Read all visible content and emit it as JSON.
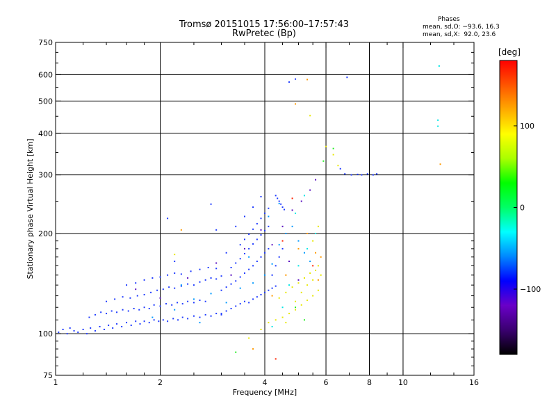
{
  "chart_data": {
    "type": "scatter",
    "title": "Tromsø 20151015 17:56:00–17:57:43",
    "subtitle": "RwPretec (Bp)",
    "xlabel": "Frequency [MHz]",
    "ylabel": "Stationary phase Virtual Height [km]",
    "x_scale": "log",
    "y_scale": "log",
    "xlim": [
      1,
      16
    ],
    "ylim": [
      75,
      750
    ],
    "x_ticks": [
      1,
      2,
      4,
      6,
      8,
      10,
      16
    ],
    "x_tick_labels": [
      "1",
      "2",
      "4",
      "6",
      "8",
      "10",
      "16"
    ],
    "y_ticks": [
      75,
      100,
      200,
      300,
      400,
      500,
      600,
      750
    ],
    "y_tick_labels": [
      "75",
      "100",
      "200",
      "300",
      "400",
      "500",
      "600",
      "750"
    ],
    "grid": true,
    "phase_stats": {
      "heading": "Phases",
      "o_mode": "mean, sd,O: −93.6, 16.3",
      "x_mode": "mean, sd,X:  92.0, 23.6"
    },
    "colorbar": {
      "label": "[deg]",
      "range": [
        -180,
        180
      ],
      "ticks": [
        100,
        0,
        -100
      ],
      "tick_labels": [
        "100",
        "0",
        "−100"
      ],
      "colors": [
        "#000000",
        "#3a0070",
        "#6a00c8",
        "#0000ff",
        "#0088ff",
        "#00ffff",
        "#00ff66",
        "#00ff00",
        "#aaff00",
        "#ffff00",
        "#ffaa00",
        "#ff5500",
        "#ff0000"
      ]
    },
    "series": [
      {
        "phase": -95,
        "color": "#1f3bff",
        "points": [
          [
            1.02,
            101
          ],
          [
            1.05,
            103
          ],
          [
            1.08,
            100
          ],
          [
            1.1,
            104
          ],
          [
            1.13,
            102
          ],
          [
            1.16,
            101
          ],
          [
            1.2,
            103
          ],
          [
            1.23,
            100
          ],
          [
            1.26,
            104
          ],
          [
            1.3,
            102
          ],
          [
            1.34,
            105
          ],
          [
            1.38,
            103
          ],
          [
            1.42,
            106
          ],
          [
            1.46,
            104
          ],
          [
            1.5,
            107
          ],
          [
            1.55,
            105
          ],
          [
            1.6,
            108
          ],
          [
            1.65,
            106
          ],
          [
            1.7,
            109
          ],
          [
            1.75,
            107
          ],
          [
            1.8,
            109
          ],
          [
            1.86,
            108
          ],
          [
            1.92,
            110
          ],
          [
            1.98,
            109
          ],
          [
            2.04,
            110
          ],
          [
            2.1,
            109
          ],
          [
            2.18,
            111
          ],
          [
            2.25,
            110
          ],
          [
            2.32,
            112
          ],
          [
            2.4,
            111
          ],
          [
            2.5,
            113
          ],
          [
            2.6,
            112
          ],
          [
            2.7,
            114
          ],
          [
            2.8,
            113
          ],
          [
            2.9,
            115
          ],
          [
            3.0,
            114
          ],
          [
            1.25,
            112
          ],
          [
            1.3,
            114
          ],
          [
            1.35,
            116
          ],
          [
            1.4,
            115
          ],
          [
            1.45,
            117
          ],
          [
            1.5,
            116
          ],
          [
            1.56,
            118
          ],
          [
            1.62,
            117
          ],
          [
            1.68,
            119
          ],
          [
            1.74,
            118
          ],
          [
            1.8,
            120
          ],
          [
            1.86,
            119
          ],
          [
            1.92,
            122
          ],
          [
            2.0,
            121
          ],
          [
            2.08,
            123
          ],
          [
            2.16,
            122
          ],
          [
            2.24,
            124
          ],
          [
            2.32,
            123
          ],
          [
            2.4,
            125
          ],
          [
            2.5,
            124
          ],
          [
            2.6,
            126
          ],
          [
            2.7,
            125
          ],
          [
            1.4,
            125
          ],
          [
            1.48,
            127
          ],
          [
            1.56,
            129
          ],
          [
            1.64,
            128
          ],
          [
            1.72,
            130
          ],
          [
            1.8,
            131
          ],
          [
            1.88,
            133
          ],
          [
            1.96,
            135
          ],
          [
            2.04,
            136
          ],
          [
            2.12,
            138
          ],
          [
            2.2,
            137
          ],
          [
            2.3,
            139
          ],
          [
            2.4,
            141
          ],
          [
            2.5,
            140
          ],
          [
            2.6,
            143
          ],
          [
            2.7,
            145
          ],
          [
            2.8,
            147
          ],
          [
            2.9,
            146
          ],
          [
            3.0,
            149
          ],
          [
            1.6,
            140
          ],
          [
            1.7,
            142
          ],
          [
            1.8,
            145
          ],
          [
            1.9,
            147
          ],
          [
            2.0,
            148
          ],
          [
            2.1,
            150
          ],
          [
            2.2,
            152
          ],
          [
            2.3,
            151
          ],
          [
            2.45,
            154
          ],
          [
            2.6,
            156
          ],
          [
            2.75,
            158
          ],
          [
            2.9,
            157
          ],
          [
            3.0,
            115
          ],
          [
            3.1,
            117
          ],
          [
            3.2,
            119
          ],
          [
            3.3,
            121
          ],
          [
            3.4,
            123
          ],
          [
            3.5,
            125
          ],
          [
            3.6,
            124
          ],
          [
            3.7,
            127
          ],
          [
            3.8,
            129
          ],
          [
            3.9,
            131
          ],
          [
            4.0,
            133
          ],
          [
            4.1,
            135
          ],
          [
            4.2,
            137
          ],
          [
            4.3,
            139
          ],
          [
            3.0,
            135
          ],
          [
            3.1,
            138
          ],
          [
            3.2,
            141
          ],
          [
            3.3,
            144
          ],
          [
            3.4,
            148
          ],
          [
            3.5,
            152
          ],
          [
            3.6,
            156
          ],
          [
            3.7,
            160
          ],
          [
            3.8,
            165
          ],
          [
            3.9,
            170
          ],
          [
            4.0,
            175
          ],
          [
            4.1,
            180
          ],
          [
            3.2,
            158
          ],
          [
            3.3,
            163
          ],
          [
            3.4,
            168
          ],
          [
            3.5,
            174
          ],
          [
            3.6,
            180
          ],
          [
            3.7,
            186
          ],
          [
            3.8,
            192
          ],
          [
            3.9,
            198
          ],
          [
            4.0,
            204
          ],
          [
            4.1,
            210
          ],
          [
            3.4,
            185
          ],
          [
            3.5,
            192
          ],
          [
            3.6,
            199
          ],
          [
            3.7,
            206
          ],
          [
            3.8,
            214
          ],
          [
            3.9,
            222
          ],
          [
            4.0,
            230
          ],
          [
            4.1,
            238
          ],
          [
            3.3,
            210
          ],
          [
            3.5,
            225
          ],
          [
            3.7,
            240
          ],
          [
            3.9,
            258
          ],
          [
            4.3,
            260
          ],
          [
            4.35,
            255
          ],
          [
            4.4,
            250
          ],
          [
            4.45,
            245
          ],
          [
            4.5,
            240
          ],
          [
            4.55,
            236
          ],
          [
            4.2,
            150
          ],
          [
            4.3,
            160
          ],
          [
            4.4,
            170
          ],
          [
            4.5,
            180
          ],
          [
            2.1,
            222
          ],
          [
            2.8,
            245
          ],
          [
            2.9,
            205
          ],
          [
            3.1,
            175
          ],
          [
            2.2,
            165
          ],
          [
            4.7,
            570
          ],
          [
            4.9,
            582
          ],
          [
            6.9,
            589
          ],
          [
            6.6,
            313
          ],
          [
            6.8,
            302
          ],
          [
            7.1,
            300
          ],
          [
            7.4,
            301
          ],
          [
            7.6,
            300
          ],
          [
            7.9,
            302
          ],
          [
            8.2,
            300
          ],
          [
            8.4,
            302
          ]
        ]
      },
      {
        "phase": -60,
        "color": "#0099ff",
        "points": [
          [
            1.9,
            112
          ],
          [
            2.2,
            118
          ],
          [
            2.5,
            127
          ],
          [
            2.8,
            132
          ],
          [
            3.1,
            124
          ],
          [
            3.4,
            137
          ],
          [
            3.7,
            142
          ],
          [
            4.0,
            150
          ],
          [
            4.2,
            162
          ],
          [
            4.4,
            185
          ],
          [
            4.6,
            200
          ],
          [
            4.8,
            210
          ],
          [
            5.0,
            190
          ],
          [
            5.2,
            175
          ],
          [
            5.4,
            165
          ],
          [
            2.6,
            108
          ],
          [
            2.3,
            140
          ],
          [
            3.6,
            170
          ],
          [
            4.1,
            225
          ],
          [
            4.4,
            246
          ]
        ]
      },
      {
        "phase": -130,
        "color": "#5a10c0",
        "points": [
          [
            1.7,
            136
          ],
          [
            2.0,
            128
          ],
          [
            2.4,
            147
          ],
          [
            2.9,
            163
          ],
          [
            3.2,
            150
          ],
          [
            3.5,
            180
          ],
          [
            3.9,
            205
          ],
          [
            4.2,
            185
          ],
          [
            4.5,
            210
          ],
          [
            4.8,
            235
          ],
          [
            5.1,
            250
          ],
          [
            5.4,
            270
          ],
          [
            5.6,
            290
          ],
          [
            4.7,
            165
          ],
          [
            5.0,
            145
          ]
        ]
      },
      {
        "phase": -20,
        "color": "#00e5e5",
        "points": [
          [
            4.2,
            105
          ],
          [
            4.5,
            120
          ],
          [
            4.7,
            140
          ],
          [
            5.0,
            160
          ],
          [
            5.3,
            180
          ],
          [
            5.6,
            200
          ],
          [
            4.9,
            230
          ],
          [
            5.2,
            260
          ],
          [
            12.6,
            420
          ],
          [
            12.6,
            438
          ],
          [
            12.7,
            637
          ]
        ]
      },
      {
        "phase": 100,
        "color": "#e8e800",
        "points": [
          [
            3.9,
            103
          ],
          [
            4.1,
            108
          ],
          [
            4.3,
            110
          ],
          [
            4.5,
            112
          ],
          [
            4.7,
            115
          ],
          [
            4.9,
            118
          ],
          [
            5.1,
            122
          ],
          [
            5.3,
            126
          ],
          [
            5.5,
            130
          ],
          [
            5.7,
            135
          ],
          [
            4.4,
            128
          ],
          [
            4.6,
            133
          ],
          [
            4.8,
            138
          ],
          [
            5.0,
            142
          ],
          [
            5.2,
            147
          ],
          [
            5.4,
            152
          ],
          [
            5.6,
            155
          ],
          [
            5.8,
            150
          ],
          [
            4.6,
            108
          ],
          [
            4.9,
            125
          ],
          [
            5.1,
            133
          ],
          [
            5.3,
            140
          ],
          [
            5.5,
            145
          ],
          [
            5.7,
            160
          ],
          [
            5.5,
            190
          ],
          [
            5.7,
            210
          ],
          [
            6.0,
            365
          ],
          [
            6.3,
            345
          ],
          [
            6.5,
            320
          ],
          [
            3.6,
            97
          ],
          [
            5.4,
            452
          ],
          [
            2.2,
            173
          ]
        ]
      },
      {
        "phase": 140,
        "color": "#ff9900",
        "points": [
          [
            2.3,
            205
          ],
          [
            4.2,
            130
          ],
          [
            4.6,
            150
          ],
          [
            5.0,
            180
          ],
          [
            5.3,
            200
          ],
          [
            5.6,
            175
          ],
          [
            5.7,
            145
          ],
          [
            4.9,
            490
          ],
          [
            5.3,
            580
          ],
          [
            12.8,
            323
          ],
          [
            3.7,
            90
          ],
          [
            5.8,
            170
          ]
        ]
      },
      {
        "phase": 175,
        "color": "#ff2200",
        "points": [
          [
            4.3,
            84
          ],
          [
            4.8,
            255
          ],
          [
            5.5,
            160
          ],
          [
            4.5,
            190
          ]
        ]
      },
      {
        "phase": 40,
        "color": "#22ee22",
        "points": [
          [
            3.3,
            88
          ],
          [
            5.9,
            330
          ],
          [
            6.3,
            360
          ],
          [
            4.9,
            120
          ],
          [
            5.2,
            110
          ]
        ]
      }
    ]
  }
}
